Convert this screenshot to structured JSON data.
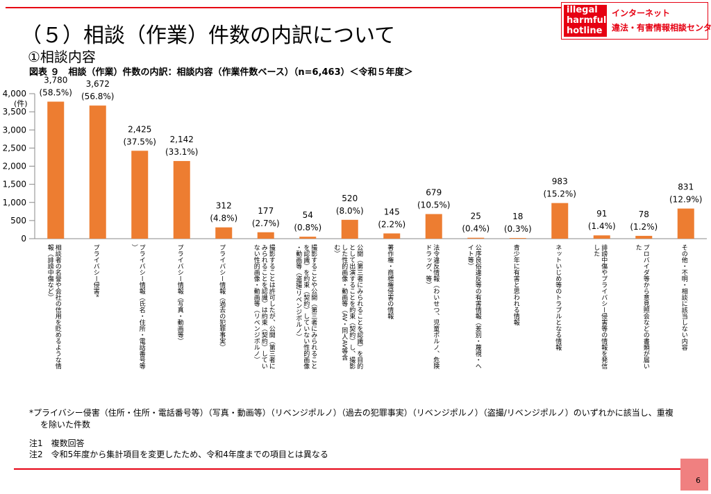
{
  "header": {
    "title": "（５）相談（作業）件数の内訳について",
    "subtitle": "①相談内容",
    "figure_caption": "図表 ９　相談（作業）件数の内訳：相談内容（作業件数ベース）（n=6,463）＜令和５年度＞"
  },
  "logo": {
    "mark_lines": [
      "illegal",
      "harmful",
      "hotline"
    ],
    "line1": "インターネット",
    "line2": "違法・有害情報相談センター",
    "color": "#e60012"
  },
  "chart_data": {
    "type": "bar",
    "ylabel": "(件)",
    "ylim": [
      0,
      4000
    ],
    "yticks": [
      "0",
      "500",
      "1,000",
      "1,500",
      "2,000",
      "2,500",
      "3,000",
      "3,500",
      "4,000"
    ],
    "bar_color": "#ed7d31",
    "categories": [
      "相談者の名誉や会社の信用を貶めるような情報（誹謗中傷など）",
      "プライバシー侵害*",
      "プライバシー情報（氏名・住所・電話番号等）",
      "プライバシー情報（写真・動画等）",
      "プライバシー情報（過去の犯罪事実）",
      "撮影することは許可したが、公開（第三者にみられることを認識）は約束（契約）していない性的画像・動画等（リベンジポルノ）",
      "撮影することや公開（第三者にみられることを認識）を約束（契約）していない性的画像・動画等（盗撮/リベンジポルノ）",
      "公開（第三者にみられることを認識）を目的として出演することを約束（契約）し、撮影した性的画像・動画等（AV・同人AV等含む）",
      "著作権・商標権侵害の情報",
      "法令違反情報（わいせつ、児童ポルノ、危険ドラッグ、等）",
      "公序良俗違反等の有害情報（差別・蔑視・ヘイト等）",
      "青少年に有害と思われる情報",
      "ネットいじめ等のトラブルとなる情報",
      "誹謗中傷やプライバシー侵害等の情報を発信した",
      "プロバイダ等から意見照会などの書類が届いた",
      "その他・不明・相談に該当しない内容"
    ],
    "values": [
      3780,
      3672,
      2425,
      2142,
      312,
      177,
      54,
      520,
      145,
      679,
      25,
      18,
      983,
      91,
      78,
      831
    ],
    "value_labels": [
      "3,780",
      "3,672",
      "2,425",
      "2,142",
      "312",
      "177",
      "54",
      "520",
      "145",
      "679",
      "25",
      "18",
      "983",
      "91",
      "78",
      "831"
    ],
    "percent_labels": [
      "(58.5%)",
      "(56.8%)",
      "(37.5%)",
      "(33.1%)",
      "(4.8%)",
      "(2.7%)",
      "(0.8%)",
      "(8.0%)",
      "(2.2%)",
      "(10.5%)",
      "(0.4%)",
      "(0.3%)",
      "(15.2%)",
      "(1.4%)",
      "(1.2%)",
      "(12.9%)"
    ]
  },
  "notes": {
    "footnote_line1": "*プライバシー侵害（住所・住所・電話番号等）（写真・動画等）（リベンジポルノ）（過去の犯罪事実）（リベンジポルノ）（盗撮/リベンジポルノ）のいずれかに該当し、重複",
    "footnote_line2": "を除いた件数",
    "note1": "注1　複数回答",
    "note2": "注2　令和5年度から集計項目を変更したため、令和4年度までの項目とは異なる"
  },
  "page_number": "6"
}
